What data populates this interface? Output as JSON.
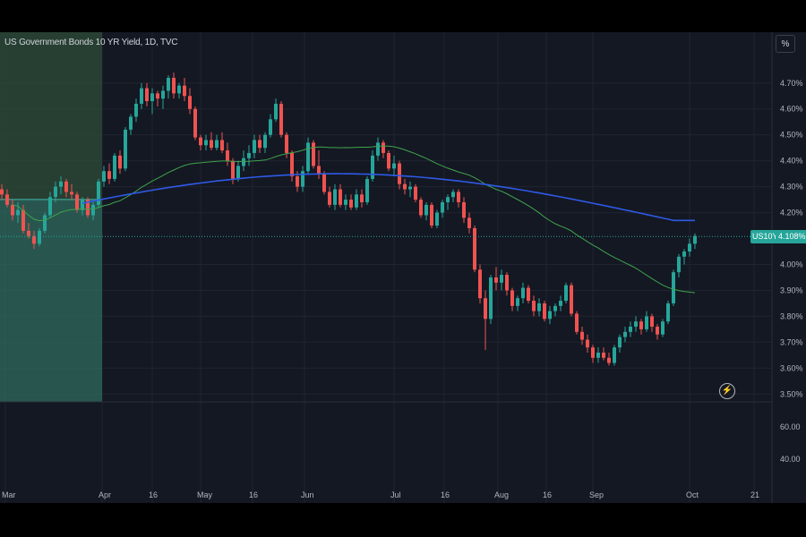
{
  "title": "US Government Bonds 10 YR Yield, 1D, TVC",
  "scale_button": "%",
  "price_badge_symbol": "US10Y",
  "price_badge_value": "4.108%",
  "colors": {
    "up": "#26a69a",
    "down": "#ef5350",
    "ma_short": "#3fa34d",
    "ma_long": "#2e5ae6",
    "range_box": "#2f5a52"
  },
  "chart_data": {
    "type": "candlestick",
    "y_axis_labels": [
      "4.70%",
      "4.60%",
      "4.50%",
      "4.40%",
      "4.30%",
      "4.20%",
      "4.00%",
      "3.90%",
      "3.80%",
      "3.70%",
      "3.60%",
      "3.50%"
    ],
    "y_ticks": [
      4.7,
      4.6,
      4.5,
      4.4,
      4.3,
      4.2,
      4.0,
      3.9,
      3.8,
      3.7,
      3.6,
      3.5
    ],
    "ylim": [
      3.47,
      4.82
    ],
    "lower_pane_labels": [
      "60.00",
      "40.00"
    ],
    "x_axis_labels": [
      "Mar",
      "Apr",
      "16",
      "May",
      "16",
      "Jun",
      "Jul",
      "16",
      "Aug",
      "16",
      "Sep",
      "Oct",
      "21"
    ],
    "price_line": 4.108,
    "candles": [
      [
        4.29,
        4.31,
        4.25,
        4.27
      ],
      [
        4.27,
        4.29,
        4.22,
        4.23
      ],
      [
        4.23,
        4.25,
        4.17,
        4.19
      ],
      [
        4.19,
        4.24,
        4.16,
        4.21
      ],
      [
        4.21,
        4.23,
        4.12,
        4.13
      ],
      [
        4.13,
        4.16,
        4.1,
        4.11
      ],
      [
        4.11,
        4.13,
        4.06,
        4.08
      ],
      [
        4.08,
        4.14,
        4.07,
        4.13
      ],
      [
        4.13,
        4.2,
        4.12,
        4.19
      ],
      [
        4.19,
        4.28,
        4.18,
        4.26
      ],
      [
        4.26,
        4.32,
        4.24,
        4.3
      ],
      [
        4.3,
        4.34,
        4.27,
        4.32
      ],
      [
        4.32,
        4.33,
        4.26,
        4.28
      ],
      [
        4.28,
        4.31,
        4.25,
        4.27
      ],
      [
        4.27,
        4.28,
        4.2,
        4.21
      ],
      [
        4.21,
        4.26,
        4.19,
        4.25
      ],
      [
        4.25,
        4.26,
        4.18,
        4.19
      ],
      [
        4.19,
        4.24,
        4.17,
        4.23
      ],
      [
        4.23,
        4.33,
        4.22,
        4.32
      ],
      [
        4.32,
        4.38,
        4.3,
        4.36
      ],
      [
        4.36,
        4.39,
        4.31,
        4.33
      ],
      [
        4.33,
        4.43,
        4.32,
        4.42
      ],
      [
        4.42,
        4.44,
        4.35,
        4.37
      ],
      [
        4.37,
        4.53,
        4.36,
        4.52
      ],
      [
        4.52,
        4.58,
        4.5,
        4.57
      ],
      [
        4.57,
        4.64,
        4.55,
        4.62
      ],
      [
        4.62,
        4.7,
        4.6,
        4.68
      ],
      [
        4.68,
        4.7,
        4.61,
        4.63
      ],
      [
        4.63,
        4.68,
        4.58,
        4.66
      ],
      [
        4.66,
        4.67,
        4.61,
        4.64
      ],
      [
        4.64,
        4.69,
        4.6,
        4.67
      ],
      [
        4.67,
        4.73,
        4.64,
        4.72
      ],
      [
        4.72,
        4.74,
        4.64,
        4.66
      ],
      [
        4.66,
        4.7,
        4.64,
        4.69
      ],
      [
        4.69,
        4.72,
        4.63,
        4.65
      ],
      [
        4.65,
        4.68,
        4.58,
        4.6
      ],
      [
        4.6,
        4.61,
        4.48,
        4.49
      ],
      [
        4.49,
        4.5,
        4.44,
        4.46
      ],
      [
        4.46,
        4.5,
        4.44,
        4.48
      ],
      [
        4.48,
        4.51,
        4.44,
        4.45
      ],
      [
        4.45,
        4.5,
        4.44,
        4.48
      ],
      [
        4.48,
        4.51,
        4.43,
        4.44
      ],
      [
        4.44,
        4.47,
        4.38,
        4.4
      ],
      [
        4.4,
        4.41,
        4.31,
        4.33
      ],
      [
        4.33,
        4.4,
        4.32,
        4.38
      ],
      [
        4.38,
        4.44,
        4.36,
        4.41
      ],
      [
        4.41,
        4.46,
        4.38,
        4.43
      ],
      [
        4.43,
        4.5,
        4.41,
        4.48
      ],
      [
        4.48,
        4.5,
        4.43,
        4.45
      ],
      [
        4.45,
        4.51,
        4.43,
        4.5
      ],
      [
        4.5,
        4.58,
        4.49,
        4.56
      ],
      [
        4.56,
        4.64,
        4.55,
        4.62
      ],
      [
        4.62,
        4.63,
        4.49,
        4.5
      ],
      [
        4.5,
        4.51,
        4.41,
        4.43
      ],
      [
        4.43,
        4.44,
        4.32,
        4.34
      ],
      [
        4.34,
        4.36,
        4.28,
        4.3
      ],
      [
        4.3,
        4.38,
        4.28,
        4.36
      ],
      [
        4.36,
        4.49,
        4.35,
        4.47
      ],
      [
        4.47,
        4.48,
        4.37,
        4.38
      ],
      [
        4.38,
        4.44,
        4.33,
        4.35
      ],
      [
        4.35,
        4.36,
        4.27,
        4.28
      ],
      [
        4.28,
        4.3,
        4.22,
        4.23
      ],
      [
        4.23,
        4.31,
        4.21,
        4.29
      ],
      [
        4.29,
        4.31,
        4.22,
        4.23
      ],
      [
        4.23,
        4.27,
        4.21,
        4.25
      ],
      [
        4.25,
        4.27,
        4.21,
        4.22
      ],
      [
        4.22,
        4.29,
        4.21,
        4.27
      ],
      [
        4.27,
        4.29,
        4.22,
        4.24
      ],
      [
        4.24,
        4.34,
        4.23,
        4.33
      ],
      [
        4.33,
        4.44,
        4.32,
        4.42
      ],
      [
        4.42,
        4.49,
        4.4,
        4.47
      ],
      [
        4.47,
        4.48,
        4.41,
        4.43
      ],
      [
        4.43,
        4.44,
        4.36,
        4.37
      ],
      [
        4.37,
        4.42,
        4.34,
        4.39
      ],
      [
        4.39,
        4.4,
        4.29,
        4.31
      ],
      [
        4.31,
        4.33,
        4.27,
        4.29
      ],
      [
        4.29,
        4.32,
        4.26,
        4.3
      ],
      [
        4.3,
        4.31,
        4.24,
        4.25
      ],
      [
        4.25,
        4.26,
        4.18,
        4.19
      ],
      [
        4.19,
        4.24,
        4.17,
        4.23
      ],
      [
        4.23,
        4.24,
        4.14,
        4.15
      ],
      [
        4.15,
        4.21,
        4.14,
        4.2
      ],
      [
        4.2,
        4.25,
        4.18,
        4.24
      ],
      [
        4.24,
        4.27,
        4.21,
        4.26
      ],
      [
        4.26,
        4.29,
        4.24,
        4.28
      ],
      [
        4.28,
        4.29,
        4.22,
        4.24
      ],
      [
        4.24,
        4.26,
        4.16,
        4.18
      ],
      [
        4.18,
        4.2,
        4.12,
        4.14
      ],
      [
        4.14,
        4.15,
        3.97,
        3.98
      ],
      [
        3.98,
        4.0,
        3.85,
        3.87
      ],
      [
        3.87,
        3.9,
        3.67,
        3.79
      ],
      [
        3.79,
        3.96,
        3.77,
        3.95
      ],
      [
        3.95,
        3.99,
        3.9,
        3.93
      ],
      [
        3.93,
        3.98,
        3.9,
        3.96
      ],
      [
        3.96,
        3.97,
        3.88,
        3.9
      ],
      [
        3.9,
        3.91,
        3.82,
        3.84
      ],
      [
        3.84,
        3.88,
        3.82,
        3.87
      ],
      [
        3.87,
        3.93,
        3.85,
        3.91
      ],
      [
        3.91,
        3.92,
        3.85,
        3.86
      ],
      [
        3.86,
        3.88,
        3.8,
        3.82
      ],
      [
        3.82,
        3.87,
        3.8,
        3.85
      ],
      [
        3.85,
        3.86,
        3.78,
        3.79
      ],
      [
        3.79,
        3.84,
        3.77,
        3.82
      ],
      [
        3.82,
        3.85,
        3.8,
        3.84
      ],
      [
        3.84,
        3.88,
        3.82,
        3.86
      ],
      [
        3.86,
        3.93,
        3.85,
        3.92
      ],
      [
        3.92,
        3.93,
        3.8,
        3.81
      ],
      [
        3.81,
        3.82,
        3.73,
        3.74
      ],
      [
        3.74,
        3.76,
        3.69,
        3.71
      ],
      [
        3.71,
        3.73,
        3.66,
        3.68
      ],
      [
        3.68,
        3.69,
        3.62,
        3.64
      ],
      [
        3.64,
        3.68,
        3.62,
        3.66
      ],
      [
        3.66,
        3.68,
        3.63,
        3.64
      ],
      [
        3.64,
        3.66,
        3.61,
        3.62
      ],
      [
        3.62,
        3.69,
        3.61,
        3.68
      ],
      [
        3.68,
        3.73,
        3.66,
        3.72
      ],
      [
        3.72,
        3.76,
        3.7,
        3.74
      ],
      [
        3.74,
        3.78,
        3.72,
        3.76
      ],
      [
        3.76,
        3.8,
        3.74,
        3.78
      ],
      [
        3.78,
        3.79,
        3.73,
        3.75
      ],
      [
        3.75,
        3.82,
        3.74,
        3.8
      ],
      [
        3.8,
        3.81,
        3.74,
        3.76
      ],
      [
        3.76,
        3.77,
        3.71,
        3.73
      ],
      [
        3.73,
        3.79,
        3.72,
        3.78
      ],
      [
        3.78,
        3.86,
        3.77,
        3.85
      ],
      [
        3.85,
        3.98,
        3.84,
        3.97
      ],
      [
        3.97,
        4.04,
        3.95,
        4.03
      ],
      [
        4.03,
        4.06,
        4.0,
        4.05
      ],
      [
        4.05,
        4.1,
        4.03,
        4.08
      ],
      [
        4.08,
        4.12,
        4.06,
        4.11
      ]
    ]
  }
}
